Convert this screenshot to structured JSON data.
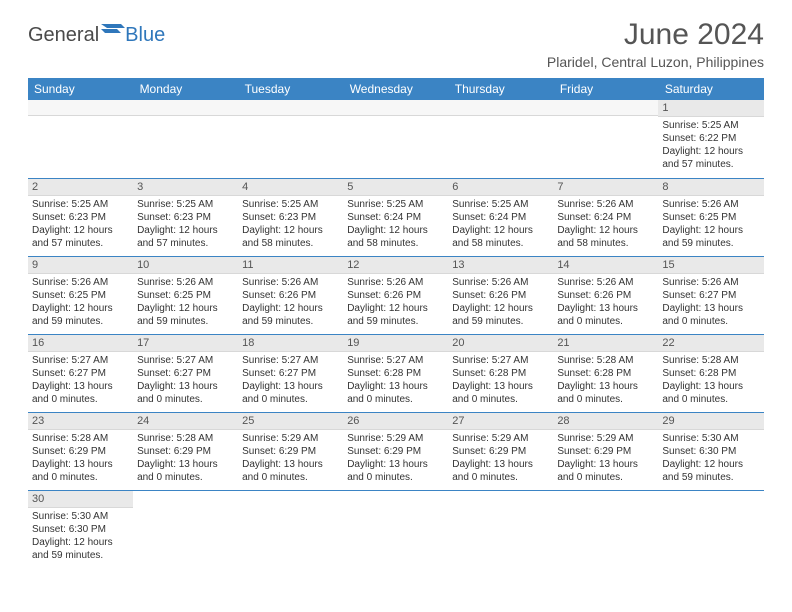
{
  "brand": {
    "part1": "General",
    "part2": "Blue"
  },
  "title": "June 2024",
  "location": "Plaridel, Central Luzon, Philippines",
  "colors": {
    "header_bg": "#3b84c4",
    "header_text": "#ffffff",
    "daynum_bg": "#e9e9e9",
    "row_border": "#3b84c4",
    "title_color": "#555555",
    "body_text": "#333333",
    "logo_blue": "#2f77bb"
  },
  "typography": {
    "title_fontsize_pt": 22,
    "location_fontsize_pt": 11,
    "weekday_fontsize_pt": 9,
    "daynum_fontsize_pt": 8,
    "body_fontsize_pt": 7.5
  },
  "layout": {
    "columns": 7,
    "rows": 6,
    "first_weekday": "Sunday"
  },
  "weekdays": [
    "Sunday",
    "Monday",
    "Tuesday",
    "Wednesday",
    "Thursday",
    "Friday",
    "Saturday"
  ],
  "startOffset": 6,
  "days": [
    {
      "n": 1,
      "sunrise": "5:25 AM",
      "sunset": "6:22 PM",
      "daylight": "12 hours and 57 minutes."
    },
    {
      "n": 2,
      "sunrise": "5:25 AM",
      "sunset": "6:23 PM",
      "daylight": "12 hours and 57 minutes."
    },
    {
      "n": 3,
      "sunrise": "5:25 AM",
      "sunset": "6:23 PM",
      "daylight": "12 hours and 57 minutes."
    },
    {
      "n": 4,
      "sunrise": "5:25 AM",
      "sunset": "6:23 PM",
      "daylight": "12 hours and 58 minutes."
    },
    {
      "n": 5,
      "sunrise": "5:25 AM",
      "sunset": "6:24 PM",
      "daylight": "12 hours and 58 minutes."
    },
    {
      "n": 6,
      "sunrise": "5:25 AM",
      "sunset": "6:24 PM",
      "daylight": "12 hours and 58 minutes."
    },
    {
      "n": 7,
      "sunrise": "5:26 AM",
      "sunset": "6:24 PM",
      "daylight": "12 hours and 58 minutes."
    },
    {
      "n": 8,
      "sunrise": "5:26 AM",
      "sunset": "6:25 PM",
      "daylight": "12 hours and 59 minutes."
    },
    {
      "n": 9,
      "sunrise": "5:26 AM",
      "sunset": "6:25 PM",
      "daylight": "12 hours and 59 minutes."
    },
    {
      "n": 10,
      "sunrise": "5:26 AM",
      "sunset": "6:25 PM",
      "daylight": "12 hours and 59 minutes."
    },
    {
      "n": 11,
      "sunrise": "5:26 AM",
      "sunset": "6:26 PM",
      "daylight": "12 hours and 59 minutes."
    },
    {
      "n": 12,
      "sunrise": "5:26 AM",
      "sunset": "6:26 PM",
      "daylight": "12 hours and 59 minutes."
    },
    {
      "n": 13,
      "sunrise": "5:26 AM",
      "sunset": "6:26 PM",
      "daylight": "12 hours and 59 minutes."
    },
    {
      "n": 14,
      "sunrise": "5:26 AM",
      "sunset": "6:26 PM",
      "daylight": "13 hours and 0 minutes."
    },
    {
      "n": 15,
      "sunrise": "5:26 AM",
      "sunset": "6:27 PM",
      "daylight": "13 hours and 0 minutes."
    },
    {
      "n": 16,
      "sunrise": "5:27 AM",
      "sunset": "6:27 PM",
      "daylight": "13 hours and 0 minutes."
    },
    {
      "n": 17,
      "sunrise": "5:27 AM",
      "sunset": "6:27 PM",
      "daylight": "13 hours and 0 minutes."
    },
    {
      "n": 18,
      "sunrise": "5:27 AM",
      "sunset": "6:27 PM",
      "daylight": "13 hours and 0 minutes."
    },
    {
      "n": 19,
      "sunrise": "5:27 AM",
      "sunset": "6:28 PM",
      "daylight": "13 hours and 0 minutes."
    },
    {
      "n": 20,
      "sunrise": "5:27 AM",
      "sunset": "6:28 PM",
      "daylight": "13 hours and 0 minutes."
    },
    {
      "n": 21,
      "sunrise": "5:28 AM",
      "sunset": "6:28 PM",
      "daylight": "13 hours and 0 minutes."
    },
    {
      "n": 22,
      "sunrise": "5:28 AM",
      "sunset": "6:28 PM",
      "daylight": "13 hours and 0 minutes."
    },
    {
      "n": 23,
      "sunrise": "5:28 AM",
      "sunset": "6:29 PM",
      "daylight": "13 hours and 0 minutes."
    },
    {
      "n": 24,
      "sunrise": "5:28 AM",
      "sunset": "6:29 PM",
      "daylight": "13 hours and 0 minutes."
    },
    {
      "n": 25,
      "sunrise": "5:29 AM",
      "sunset": "6:29 PM",
      "daylight": "13 hours and 0 minutes."
    },
    {
      "n": 26,
      "sunrise": "5:29 AM",
      "sunset": "6:29 PM",
      "daylight": "13 hours and 0 minutes."
    },
    {
      "n": 27,
      "sunrise": "5:29 AM",
      "sunset": "6:29 PM",
      "daylight": "13 hours and 0 minutes."
    },
    {
      "n": 28,
      "sunrise": "5:29 AM",
      "sunset": "6:29 PM",
      "daylight": "13 hours and 0 minutes."
    },
    {
      "n": 29,
      "sunrise": "5:30 AM",
      "sunset": "6:30 PM",
      "daylight": "12 hours and 59 minutes."
    },
    {
      "n": 30,
      "sunrise": "5:30 AM",
      "sunset": "6:30 PM",
      "daylight": "12 hours and 59 minutes."
    }
  ],
  "labels": {
    "sunrise_prefix": "Sunrise: ",
    "sunset_prefix": "Sunset: ",
    "daylight_prefix": "Daylight: "
  }
}
